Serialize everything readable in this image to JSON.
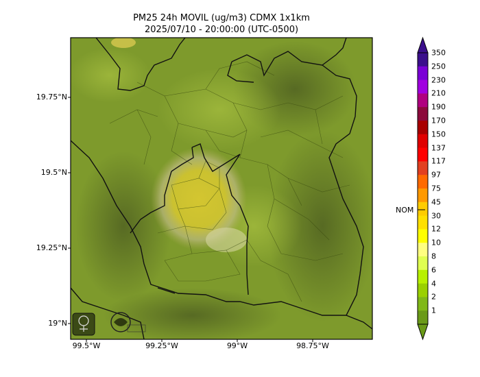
{
  "title": "PM25 24h MOVIL (ug/m3) CDMX 1x1km",
  "subtitle": "2025/07/10 - 20:00:00 (UTC-0500)",
  "lat_labels": [
    "19.75°N",
    "19.5°N",
    "19.25°N",
    "19°N"
  ],
  "lon_labels": [
    "99.5°W",
    "99.25°W",
    "99°W",
    "98.75°W"
  ],
  "colorbar": {
    "levels": [
      "350",
      "250",
      "230",
      "210",
      "190",
      "170",
      "150",
      "137",
      "117",
      "97",
      "75",
      "45",
      "30",
      "12",
      "10",
      "8",
      "6",
      "4",
      "2",
      "1"
    ],
    "colors": [
      "#3b0f8c",
      "#7a00d6",
      "#a000e0",
      "#b00080",
      "#8c0a3c",
      "#a80000",
      "#e00000",
      "#ff0000",
      "#e24020",
      "#ff6a00",
      "#ff9900",
      "#ffcc00",
      "#ffe000",
      "#ffff00",
      "#ffff80",
      "#e0ff50",
      "#b8f000",
      "#9ad000",
      "#80b818",
      "#6a9a18"
    ],
    "nom_label": "NOM"
  },
  "logos": [
    "sedema-logo",
    "gobierno-cdmx-logo"
  ]
}
